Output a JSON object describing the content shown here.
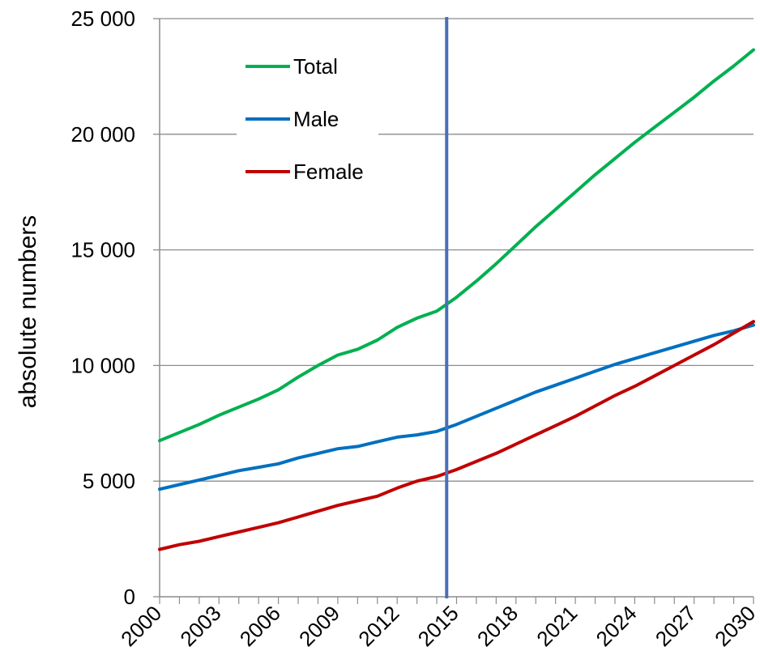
{
  "chart_data": {
    "type": "line",
    "ylabel": "absolute numbers",
    "xlim": [
      2000,
      2030
    ],
    "ylim": [
      0,
      25000
    ],
    "grid": true,
    "legend_position": "top-left",
    "x_ticks": [
      2000,
      2003,
      2006,
      2009,
      2012,
      2015,
      2018,
      2021,
      2024,
      2027,
      2030
    ],
    "x_tick_labels": [
      "2000",
      "2003",
      "2006",
      "2009",
      "2012",
      "2015",
      "2018",
      "2021",
      "2024",
      "2027",
      "2030"
    ],
    "y_ticks": [
      0,
      5000,
      10000,
      15000,
      20000,
      25000
    ],
    "y_tick_labels": [
      "0",
      "5 000",
      "10 000",
      "15 000",
      "20 000",
      "25 000"
    ],
    "vertical_marker_x": 2014.5,
    "x": [
      2000,
      2001,
      2002,
      2003,
      2004,
      2005,
      2006,
      2007,
      2008,
      2009,
      2010,
      2011,
      2012,
      2013,
      2014,
      2015,
      2016,
      2017,
      2018,
      2019,
      2020,
      2021,
      2022,
      2023,
      2024,
      2025,
      2026,
      2027,
      2028,
      2029,
      2030
    ],
    "series": [
      {
        "name": "Total",
        "color": "#00b050",
        "values": [
          6750,
          7100,
          7450,
          7850,
          8200,
          8550,
          8950,
          9500,
          10000,
          10450,
          10700,
          11100,
          11650,
          12050,
          12350,
          12950,
          13650,
          14400,
          15200,
          16000,
          16750,
          17500,
          18250,
          18950,
          19650,
          20300,
          20950,
          21600,
          22300,
          22950,
          23650
        ]
      },
      {
        "name": "Male",
        "color": "#0070c0",
        "values": [
          4650,
          4850,
          5050,
          5250,
          5450,
          5600,
          5750,
          6000,
          6200,
          6400,
          6500,
          6700,
          6900,
          7000,
          7150,
          7450,
          7800,
          8150,
          8500,
          8850,
          9150,
          9450,
          9750,
          10050,
          10300,
          10550,
          10800,
          11050,
          11300,
          11500,
          11750
        ]
      },
      {
        "name": "Female",
        "color": "#c00000",
        "values": [
          2050,
          2250,
          2400,
          2600,
          2800,
          3000,
          3200,
          3450,
          3700,
          3950,
          4150,
          4350,
          4700,
          5000,
          5200,
          5500,
          5850,
          6200,
          6600,
          7000,
          7400,
          7800,
          8250,
          8700,
          9100,
          9550,
          10000,
          10450,
          10900,
          11400,
          11900
        ]
      }
    ]
  }
}
